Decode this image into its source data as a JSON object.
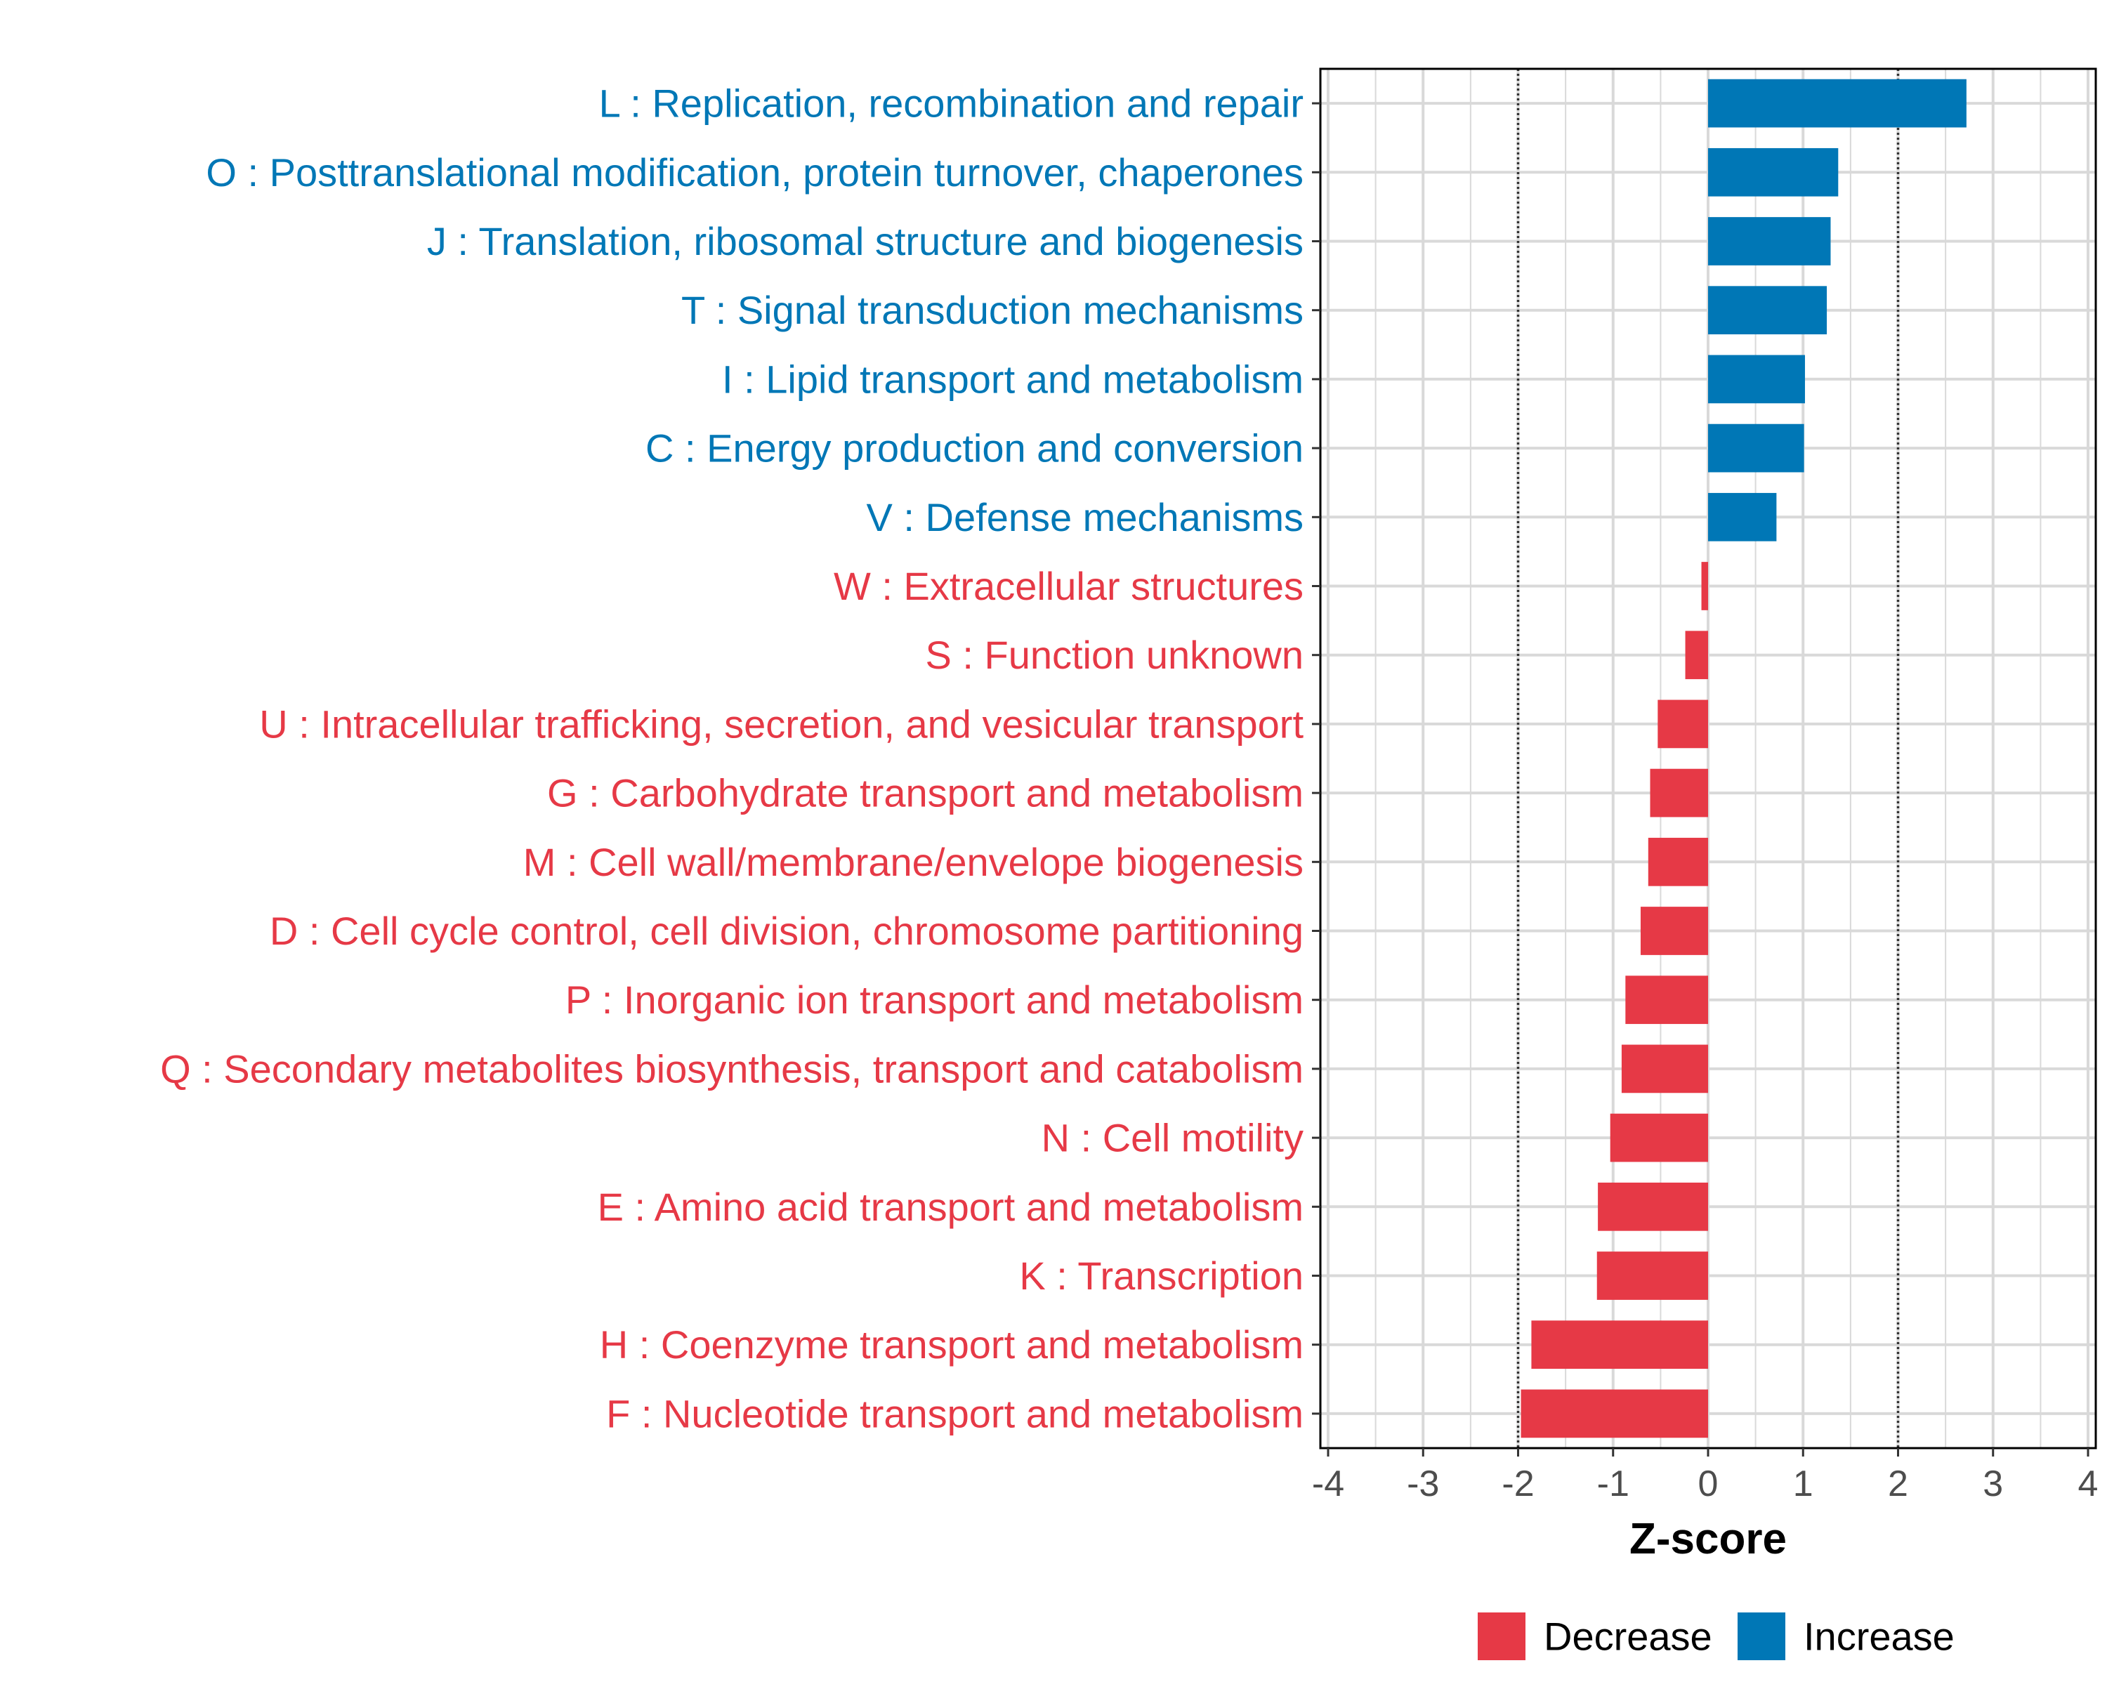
{
  "chart_data": {
    "type": "bar",
    "orientation": "horizontal",
    "title": "",
    "xlabel": "Z-score",
    "ylabel": "",
    "xlim": [
      -4,
      4
    ],
    "xticks": [
      "-4",
      "-3",
      "-2",
      "-1",
      "0",
      "1",
      "2",
      "3",
      "4"
    ],
    "grid": true,
    "reference_lines": [
      -2,
      2
    ],
    "legend_position": "bottom",
    "colors": {
      "Decrease": "#e63946",
      "Increase": "#0077b6"
    },
    "legend": [
      {
        "label": "Decrease",
        "color": "#e63946"
      },
      {
        "label": "Increase",
        "color": "#0077b6"
      }
    ],
    "categories": [
      "L : Replication, recombination and repair",
      "O : Posttranslational modification, protein turnover, chaperones",
      "J : Translation, ribosomal structure and biogenesis",
      "T : Signal transduction mechanisms",
      "I : Lipid transport and metabolism",
      "C : Energy production and conversion",
      "V : Defense mechanisms",
      "W : Extracellular structures",
      "S : Function unknown",
      "U : Intracellular trafficking, secretion, and vesicular transport",
      "G : Carbohydrate transport and metabolism",
      "M : Cell wall/membrane/envelope biogenesis",
      "D : Cell cycle control, cell division, chromosome partitioning",
      "P : Inorganic ion transport and metabolism",
      "Q : Secondary metabolites biosynthesis, transport and catabolism",
      "N : Cell motility",
      "E : Amino acid transport and metabolism",
      "K : Transcription",
      "H : Coenzyme transport and metabolism",
      "F : Nucleotide transport and metabolism"
    ],
    "values": [
      2.72,
      1.37,
      1.29,
      1.25,
      1.02,
      1.01,
      0.72,
      -0.07,
      -0.24,
      -0.53,
      -0.61,
      -0.63,
      -0.71,
      -0.87,
      -0.91,
      -1.03,
      -1.16,
      -1.17,
      -1.86,
      -1.97
    ],
    "groups": [
      "Increase",
      "Increase",
      "Increase",
      "Increase",
      "Increase",
      "Increase",
      "Increase",
      "Decrease",
      "Decrease",
      "Decrease",
      "Decrease",
      "Decrease",
      "Decrease",
      "Decrease",
      "Decrease",
      "Decrease",
      "Decrease",
      "Decrease",
      "Decrease",
      "Decrease"
    ]
  }
}
